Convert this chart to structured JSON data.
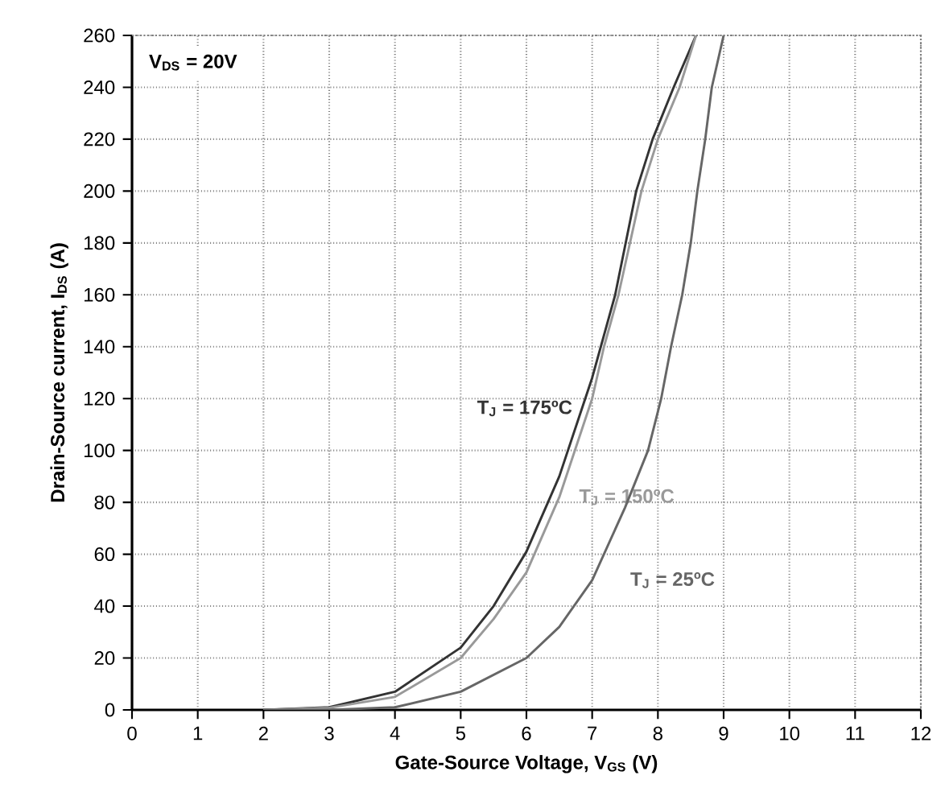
{
  "chart_data": {
    "type": "line",
    "xlabel": "Gate-Source Voltage, V$_{GS}$ (V)",
    "ylabel": "Drain-Source current, I$_{DS}$  (A)",
    "annotations": [
      "V$_{DS}$ = 20V"
    ],
    "xlim": [
      0,
      12
    ],
    "ylim": [
      0,
      260
    ],
    "xticks": [
      0,
      1,
      2,
      3,
      4,
      5,
      6,
      7,
      8,
      9,
      10,
      11,
      12
    ],
    "yticks": [
      0,
      20,
      40,
      60,
      80,
      100,
      120,
      140,
      160,
      180,
      200,
      220,
      240,
      260
    ],
    "grid": true,
    "marker": "none",
    "line_style": "solid",
    "series": [
      {
        "name": "T$_{J}$ = 175ºC",
        "color": "#333333",
        "x": [
          2,
          3,
          4,
          5,
          5.5,
          6,
          6.5,
          7,
          7.35,
          7.67,
          7.92,
          8.24,
          8.58
        ],
        "values": [
          0,
          1,
          7,
          24,
          40,
          61,
          90,
          128,
          160,
          200,
          220,
          240,
          260
        ]
      },
      {
        "name": "T$_{J}$ = 150ºC",
        "color": "#999999",
        "x": [
          2,
          3,
          4,
          5,
          5.5,
          6,
          6.5,
          7,
          7.18,
          7.4,
          7.75,
          8.0,
          8.33,
          8.58
        ],
        "values": [
          0,
          0.8,
          5,
          20,
          35,
          53,
          82,
          120,
          140,
          160,
          200,
          220,
          240,
          260
        ]
      },
      {
        "name": "T$_{J}$ = 25ºC",
        "color": "#666666",
        "x": [
          2,
          3,
          4,
          5,
          6,
          6.5,
          7,
          7.5,
          7.85,
          8.05,
          8.2,
          8.37,
          8.5,
          8.6,
          8.72,
          8.82,
          9.0
        ],
        "values": [
          0,
          0,
          1,
          7,
          20,
          32,
          50,
          78,
          100,
          120,
          140,
          160,
          180,
          200,
          220,
          240,
          260
        ]
      }
    ]
  }
}
